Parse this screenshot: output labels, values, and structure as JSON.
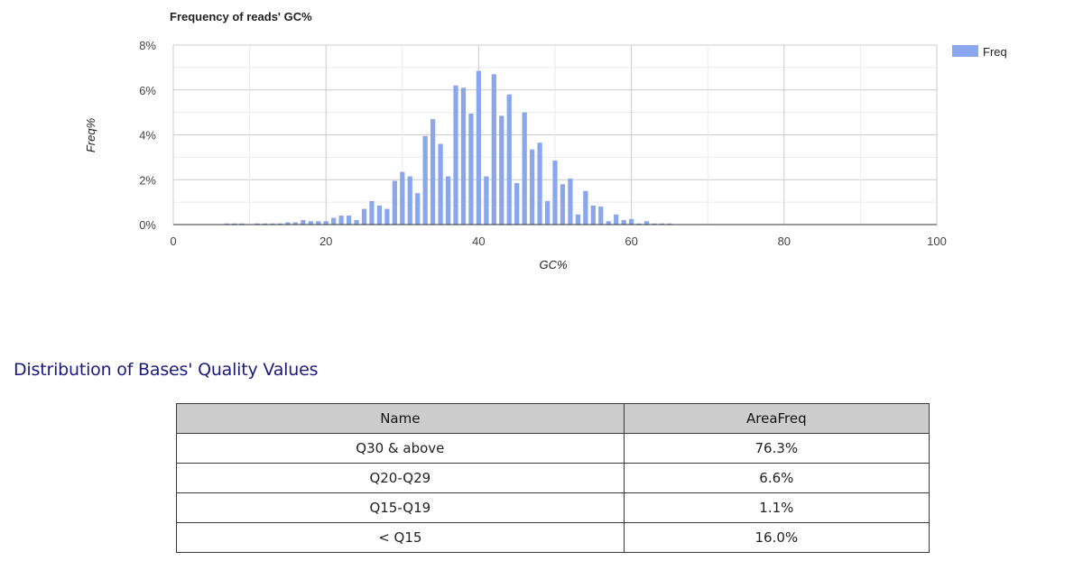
{
  "chart_data": {
    "type": "bar",
    "title": "Frequency of reads' GC%",
    "xlabel": "GC%",
    "ylabel": "Freq%",
    "xlim": [
      0,
      100
    ],
    "ylim": [
      0,
      8
    ],
    "x_ticks": [
      "0",
      "20",
      "40",
      "60",
      "80",
      "100"
    ],
    "y_ticks": [
      "0%",
      "2%",
      "4%",
      "6%",
      "8%"
    ],
    "grid": true,
    "legend_position": "top-right",
    "bar_color": "#8aa6ec",
    "series": [
      {
        "name": "Freq",
        "x": [
          3,
          4,
          5,
          6,
          7,
          8,
          9,
          10,
          11,
          12,
          13,
          14,
          15,
          16,
          17,
          18,
          19,
          20,
          21,
          22,
          23,
          24,
          25,
          26,
          27,
          28,
          29,
          30,
          31,
          32,
          33,
          34,
          35,
          36,
          37,
          38,
          39,
          40,
          41,
          42,
          43,
          44,
          45,
          46,
          47,
          48,
          49,
          50,
          51,
          52,
          53,
          54,
          55,
          56,
          57,
          58,
          59,
          60,
          61,
          62,
          63,
          64,
          65,
          66,
          67,
          68
        ],
        "values": [
          0.02,
          0.02,
          0.02,
          0.02,
          0.05,
          0.05,
          0.05,
          0.02,
          0.05,
          0.05,
          0.05,
          0.05,
          0.1,
          0.1,
          0.2,
          0.15,
          0.15,
          0.15,
          0.3,
          0.4,
          0.4,
          0.2,
          0.7,
          1.05,
          0.85,
          0.7,
          1.95,
          2.35,
          2.15,
          1.4,
          3.95,
          4.7,
          3.6,
          2.15,
          6.2,
          6.1,
          4.95,
          6.85,
          2.15,
          6.7,
          4.85,
          5.8,
          1.85,
          5.0,
          3.35,
          3.65,
          1.05,
          2.85,
          1.8,
          2.05,
          0.45,
          1.5,
          0.85,
          0.8,
          0.15,
          0.45,
          0.2,
          0.25,
          0.05,
          0.15,
          0.05,
          0.05,
          0.05,
          0.02,
          0.02,
          0.02
        ]
      }
    ]
  },
  "quality_section": {
    "title": "Distribution of Bases' Quality Values",
    "columns": [
      "Name",
      "AreaFreq"
    ],
    "rows": [
      {
        "name": "Q30 & above",
        "area_freq": "76.3%"
      },
      {
        "name": "Q20-Q29",
        "area_freq": "6.6%"
      },
      {
        "name": "Q15-Q19",
        "area_freq": "1.1%"
      },
      {
        "name": "< Q15",
        "area_freq": "16.0%"
      }
    ]
  }
}
